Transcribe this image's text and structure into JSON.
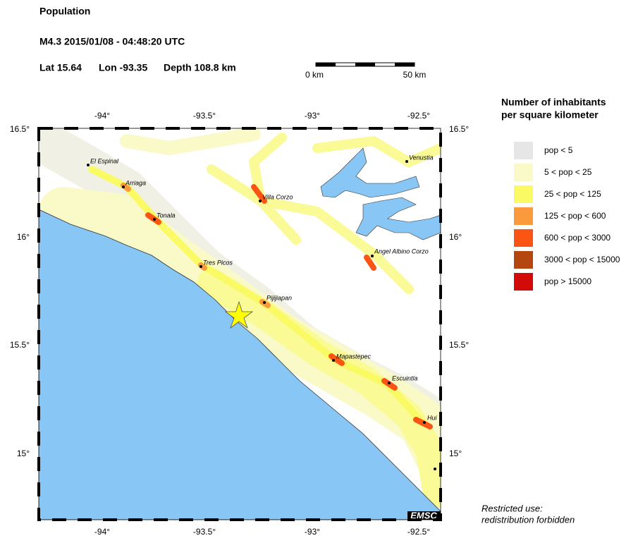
{
  "header": {
    "title": "Population",
    "event": "M4.3  2015/01/08 - 04:48:20 UTC",
    "lat": "Lat 15.64",
    "lon": "Lon -93.35",
    "depth": "Depth 108.8 km"
  },
  "scale_bar": {
    "start": "0 km",
    "end": "50 km"
  },
  "map": {
    "lon_labels": [
      "-94°",
      "-93.5°",
      "-93°",
      "-92.5°"
    ],
    "lat_labels": [
      "16.5°",
      "16°",
      "15.5°",
      "15°"
    ],
    "cities": [
      "El Espinal",
      "Arriaga",
      "Tonala",
      "Villa Corzo",
      "Venustia",
      "Angel Albino Corzo",
      "Tres Picos",
      "Pijijiapan",
      "Mapastepec",
      "Escuintla",
      "Hui"
    ],
    "logo": "EMSC"
  },
  "legend": {
    "title": [
      "Number of inhabitants",
      "per square kilometer"
    ],
    "entries": [
      {
        "label": "pop < 5",
        "color": "#e6e6e6"
      },
      {
        "label": "5 < pop < 25",
        "color": "#fafac8"
      },
      {
        "label": "25 < pop < 125",
        "color": "#fafa64"
      },
      {
        "label": "125 < pop < 600",
        "color": "#fa9a3c"
      },
      {
        "label": "600 < pop < 3000",
        "color": "#fa5514"
      },
      {
        "label": "3000 < pop < 15000",
        "color": "#b4460f"
      },
      {
        "label": "pop > 15000",
        "color": "#d20a0a"
      }
    ]
  },
  "footer": [
    "Restricted use:",
    "redistribution forbidden"
  ]
}
